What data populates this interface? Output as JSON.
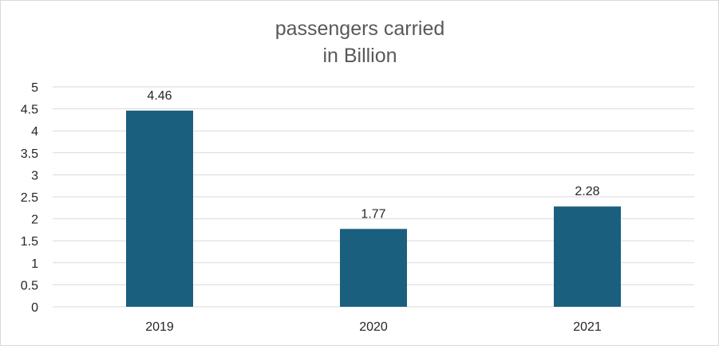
{
  "chart_data": {
    "type": "bar",
    "title_lines": [
      "passengers carried",
      "in Billion"
    ],
    "categories": [
      "2019",
      "2020",
      "2021"
    ],
    "values": [
      4.46,
      1.77,
      2.28
    ],
    "data_labels": [
      "4.46",
      "1.77",
      "2.28"
    ],
    "ylim": [
      0,
      5
    ],
    "yticks": [
      "0",
      "0.5",
      "1",
      "1.5",
      "2",
      "2.5",
      "3",
      "3.5",
      "4",
      "4.5",
      "5"
    ],
    "grid": true,
    "legend": "none",
    "bar_color": "#1b5f7f"
  }
}
